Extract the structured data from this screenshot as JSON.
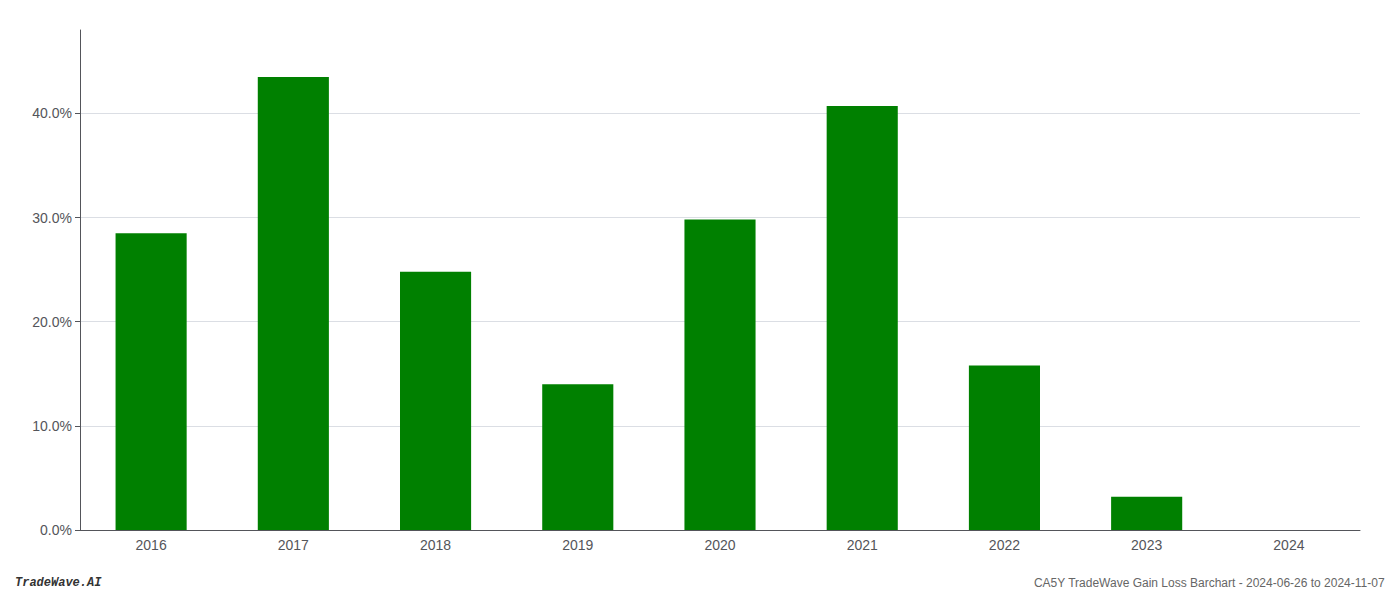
{
  "chart_data": {
    "type": "bar",
    "categories": [
      "2016",
      "2017",
      "2018",
      "2019",
      "2020",
      "2021",
      "2022",
      "2023",
      "2024"
    ],
    "values": [
      0.285,
      0.435,
      0.248,
      0.14,
      0.298,
      0.407,
      0.158,
      0.032,
      0.0
    ],
    "color": "#008000",
    "ylim": [
      0,
      0.48
    ],
    "yticks": [
      {
        "value": 0.0,
        "label": "0.0%"
      },
      {
        "value": 0.1,
        "label": "10.0%"
      },
      {
        "value": 0.2,
        "label": "20.0%"
      },
      {
        "value": 0.3,
        "label": "30.0%"
      },
      {
        "value": 0.4,
        "label": "40.0%"
      }
    ],
    "grid": true,
    "annotations": [
      "TradeWave.AI",
      "CA5Y TradeWave Gain Loss Barchart - 2024-06-26 to 2024-11-07"
    ]
  }
}
